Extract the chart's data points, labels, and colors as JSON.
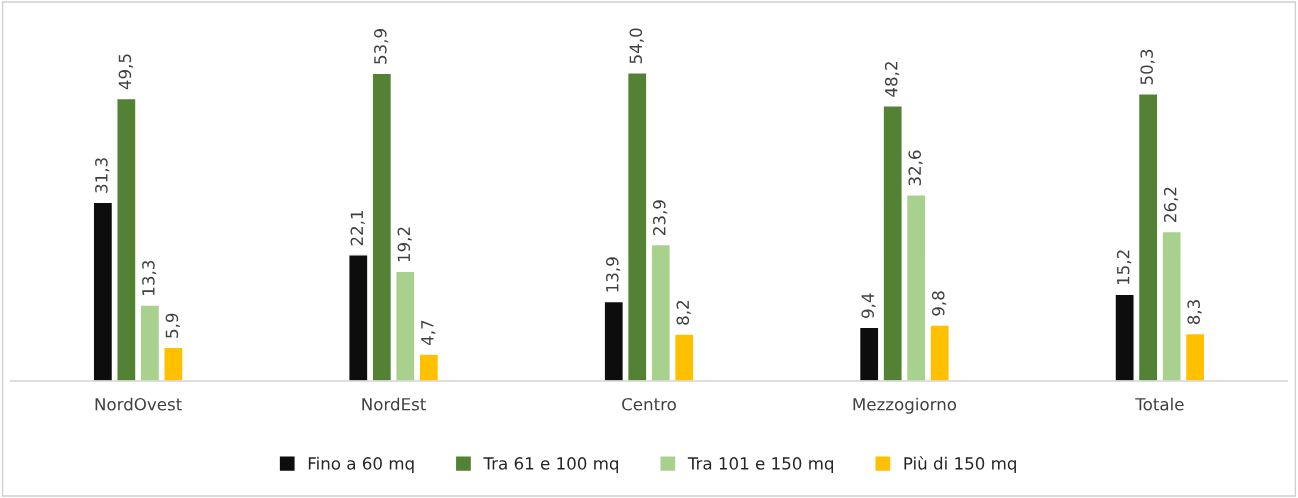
{
  "chart_data": {
    "type": "bar",
    "categories": [
      "NordOvest",
      "NordEst",
      "Centro",
      "Mezzogiorno",
      "Totale"
    ],
    "series": [
      {
        "name": "Fino a 60 mq",
        "color": "#0d0d0d",
        "values": [
          31.3,
          22.1,
          13.9,
          9.4,
          15.2
        ],
        "value_labels": [
          "31,3",
          "22,1",
          "13,9",
          "9,4",
          "15,2"
        ]
      },
      {
        "name": "Tra 61 e 100 mq",
        "color": "#548235",
        "values": [
          49.5,
          53.9,
          54.0,
          48.2,
          50.3
        ],
        "value_labels": [
          "49,5",
          "53,9",
          "54,0",
          "48,2",
          "50,3"
        ]
      },
      {
        "name": "Tra 101 e 150 mq",
        "color": "#a9d18e",
        "values": [
          13.3,
          19.2,
          23.9,
          32.6,
          26.2
        ],
        "value_labels": [
          "13,3",
          "19,2",
          "23,9",
          "32,6",
          "26,2"
        ]
      },
      {
        "name": "Più di 150 mq",
        "color": "#ffc000",
        "values": [
          5.9,
          4.7,
          8.2,
          9.8,
          8.3
        ],
        "value_labels": [
          "5,9",
          "4,7",
          "8,2",
          "9,8",
          "8,3"
        ]
      }
    ],
    "legend": "bottom",
    "grid": false
  }
}
